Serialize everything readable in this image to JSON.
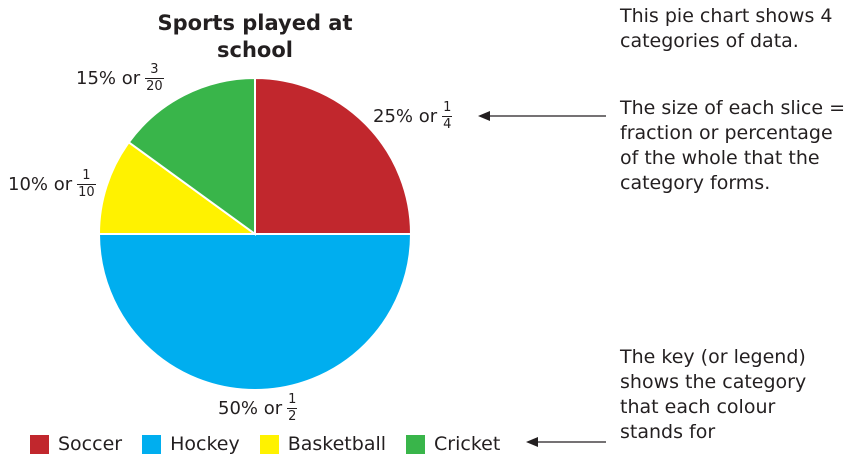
{
  "chart_data": {
    "type": "pie",
    "title": "Sports played at school",
    "slices": [
      {
        "name": "Soccer",
        "value": 25,
        "percent_label": "25% or",
        "numerator": "1",
        "denominator": "4",
        "color": "#c1272d"
      },
      {
        "name": "Hockey",
        "value": 50,
        "percent_label": "50% or",
        "numerator": "1",
        "denominator": "2",
        "color": "#00aeef"
      },
      {
        "name": "Basketball",
        "value": 10,
        "percent_label": "10% or",
        "numerator": "1",
        "denominator": "10",
        "color": "#fff200"
      },
      {
        "name": "Cricket",
        "value": 15,
        "percent_label": "15% or",
        "numerator": "3",
        "denominator": "20",
        "color": "#39b54a"
      }
    ],
    "legend_position": "bottom-left"
  },
  "annotations": {
    "categories": "This pie chart shows 4 categories of data.",
    "slice_size": "The size of each slice = fraction or percentage of the whole that the category forms.",
    "legend": "The key (or legend) shows the category that each colour stands for"
  }
}
